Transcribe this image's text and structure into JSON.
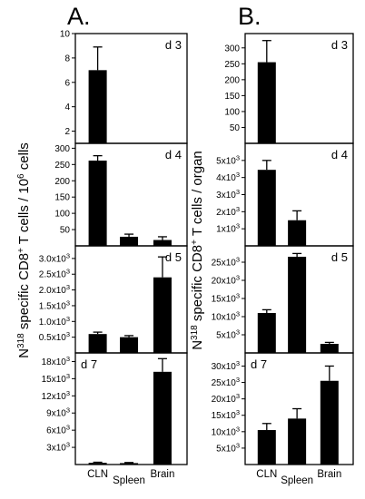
{
  "panels": [
    {
      "label": "A.",
      "ylabel_pre": "N",
      "ylabel_sup1": "318",
      "ylabel_mid": " specific CD8",
      "ylabel_sup2": "+",
      "ylabel_mid2": " T cells / 10",
      "ylabel_sup3": "6",
      "ylabel_post": " cells"
    },
    {
      "label": "B.",
      "ylabel_pre": "N",
      "ylabel_sup1": "318",
      "ylabel_mid": " specific CD8",
      "ylabel_sup2": "+",
      "ylabel_mid2": " T cells / organ",
      "ylabel_sup3": "",
      "ylabel_post": ""
    }
  ],
  "chart_data": [
    {
      "type": "bar",
      "panel": "A.",
      "day": "d 3",
      "categories": [
        "CLN",
        "Spleen",
        "Brain"
      ],
      "values": [
        7.0,
        null,
        null
      ],
      "errors": [
        1.9,
        null,
        null
      ],
      "ylim": [
        1,
        10
      ],
      "yticks": [
        {
          "v": 2,
          "t": "2"
        },
        {
          "v": 4,
          "t": "4"
        },
        {
          "v": 6,
          "t": "6"
        },
        {
          "v": 8,
          "t": "8"
        },
        {
          "v": 10,
          "t": "10"
        }
      ]
    },
    {
      "type": "bar",
      "panel": "A.",
      "day": "d 4",
      "categories": [
        "CLN",
        "Spleen",
        "Brain"
      ],
      "values": [
        262,
        28,
        18
      ],
      "errors": [
        15,
        8,
        10
      ],
      "ylim": [
        0,
        315
      ],
      "yticks": [
        {
          "v": 50,
          "t": "50"
        },
        {
          "v": 100,
          "t": "100"
        },
        {
          "v": 150,
          "t": "150"
        },
        {
          "v": 200,
          "t": "200"
        },
        {
          "v": 250,
          "t": "250"
        },
        {
          "v": 300,
          "t": "300"
        }
      ]
    },
    {
      "type": "bar",
      "panel": "A.",
      "day": "d 5",
      "categories": [
        "CLN",
        "Spleen",
        "Brain"
      ],
      "values": [
        600,
        500,
        2400
      ],
      "errors": [
        60,
        50,
        650
      ],
      "ylim": [
        0,
        3400
      ],
      "yticks": [
        {
          "v": 500,
          "t": "0.5x10"
        },
        {
          "v": 1000,
          "t": "1.0x10"
        },
        {
          "v": 1500,
          "t": "1.5x10"
        },
        {
          "v": 2000,
          "t": "2.0x10"
        },
        {
          "v": 2500,
          "t": "2.5x10"
        },
        {
          "v": 3000,
          "t": "3.0x10"
        }
      ],
      "ytick_exp": "3"
    },
    {
      "type": "bar",
      "panel": "A.",
      "day": "d 7",
      "categories": [
        "CLN",
        "Spleen",
        "Brain"
      ],
      "values": [
        300,
        250,
        16200
      ],
      "errors": [
        100,
        100,
        2300
      ],
      "ylim": [
        0,
        19500
      ],
      "yticks": [
        {
          "v": 3000,
          "t": "3x10"
        },
        {
          "v": 6000,
          "t": "6x10"
        },
        {
          "v": 9000,
          "t": "9x10"
        },
        {
          "v": 12000,
          "t": "12x10"
        },
        {
          "v": 15000,
          "t": "15x10"
        },
        {
          "v": 18000,
          "t": "18x10"
        }
      ],
      "ytick_exp": "3"
    },
    {
      "type": "bar",
      "panel": "B.",
      "day": "d 3",
      "categories": [
        "CLN",
        "Spleen",
        "Brain"
      ],
      "values": [
        255,
        null,
        null
      ],
      "errors": [
        68,
        null,
        null
      ],
      "ylim": [
        0,
        345
      ],
      "yticks": [
        {
          "v": 50,
          "t": "50"
        },
        {
          "v": 100,
          "t": "100"
        },
        {
          "v": 150,
          "t": "150"
        },
        {
          "v": 200,
          "t": "200"
        },
        {
          "v": 250,
          "t": "250"
        },
        {
          "v": 300,
          "t": "300"
        }
      ]
    },
    {
      "type": "bar",
      "panel": "B.",
      "day": "d 4",
      "categories": [
        "CLN",
        "Spleen",
        "Brain"
      ],
      "values": [
        4450,
        1500,
        null
      ],
      "errors": [
        550,
        550,
        null
      ],
      "ylim": [
        0,
        6000
      ],
      "yticks": [
        {
          "v": 1000,
          "t": "1x10"
        },
        {
          "v": 2000,
          "t": "2x10"
        },
        {
          "v": 3000,
          "t": "3x10"
        },
        {
          "v": 4000,
          "t": "4x10"
        },
        {
          "v": 5000,
          "t": "5x10"
        }
      ],
      "ytick_exp": "3"
    },
    {
      "type": "bar",
      "panel": "B.",
      "day": "d 5",
      "categories": [
        "CLN",
        "Spleen",
        "Brain"
      ],
      "values": [
        11000,
        26500,
        2500
      ],
      "errors": [
        900,
        900,
        400
      ],
      "ylim": [
        0,
        29500
      ],
      "yticks": [
        {
          "v": 5000,
          "t": "5x10"
        },
        {
          "v": 10000,
          "t": "10x10"
        },
        {
          "v": 15000,
          "t": "15x10"
        },
        {
          "v": 20000,
          "t": "20x10"
        },
        {
          "v": 25000,
          "t": "25x10"
        }
      ],
      "ytick_exp": "3"
    },
    {
      "type": "bar",
      "panel": "B.",
      "day": "d 7",
      "categories": [
        "CLN",
        "Spleen",
        "Brain"
      ],
      "values": [
        10500,
        14000,
        25500
      ],
      "errors": [
        2000,
        3000,
        4500
      ],
      "ylim": [
        0,
        34000
      ],
      "yticks": [
        {
          "v": 5000,
          "t": "5x10"
        },
        {
          "v": 10000,
          "t": "10x10"
        },
        {
          "v": 15000,
          "t": "15x10"
        },
        {
          "v": 20000,
          "t": "20x10"
        },
        {
          "v": 25000,
          "t": "25x10"
        },
        {
          "v": 30000,
          "t": "30x10"
        }
      ],
      "ytick_exp": "3"
    }
  ]
}
